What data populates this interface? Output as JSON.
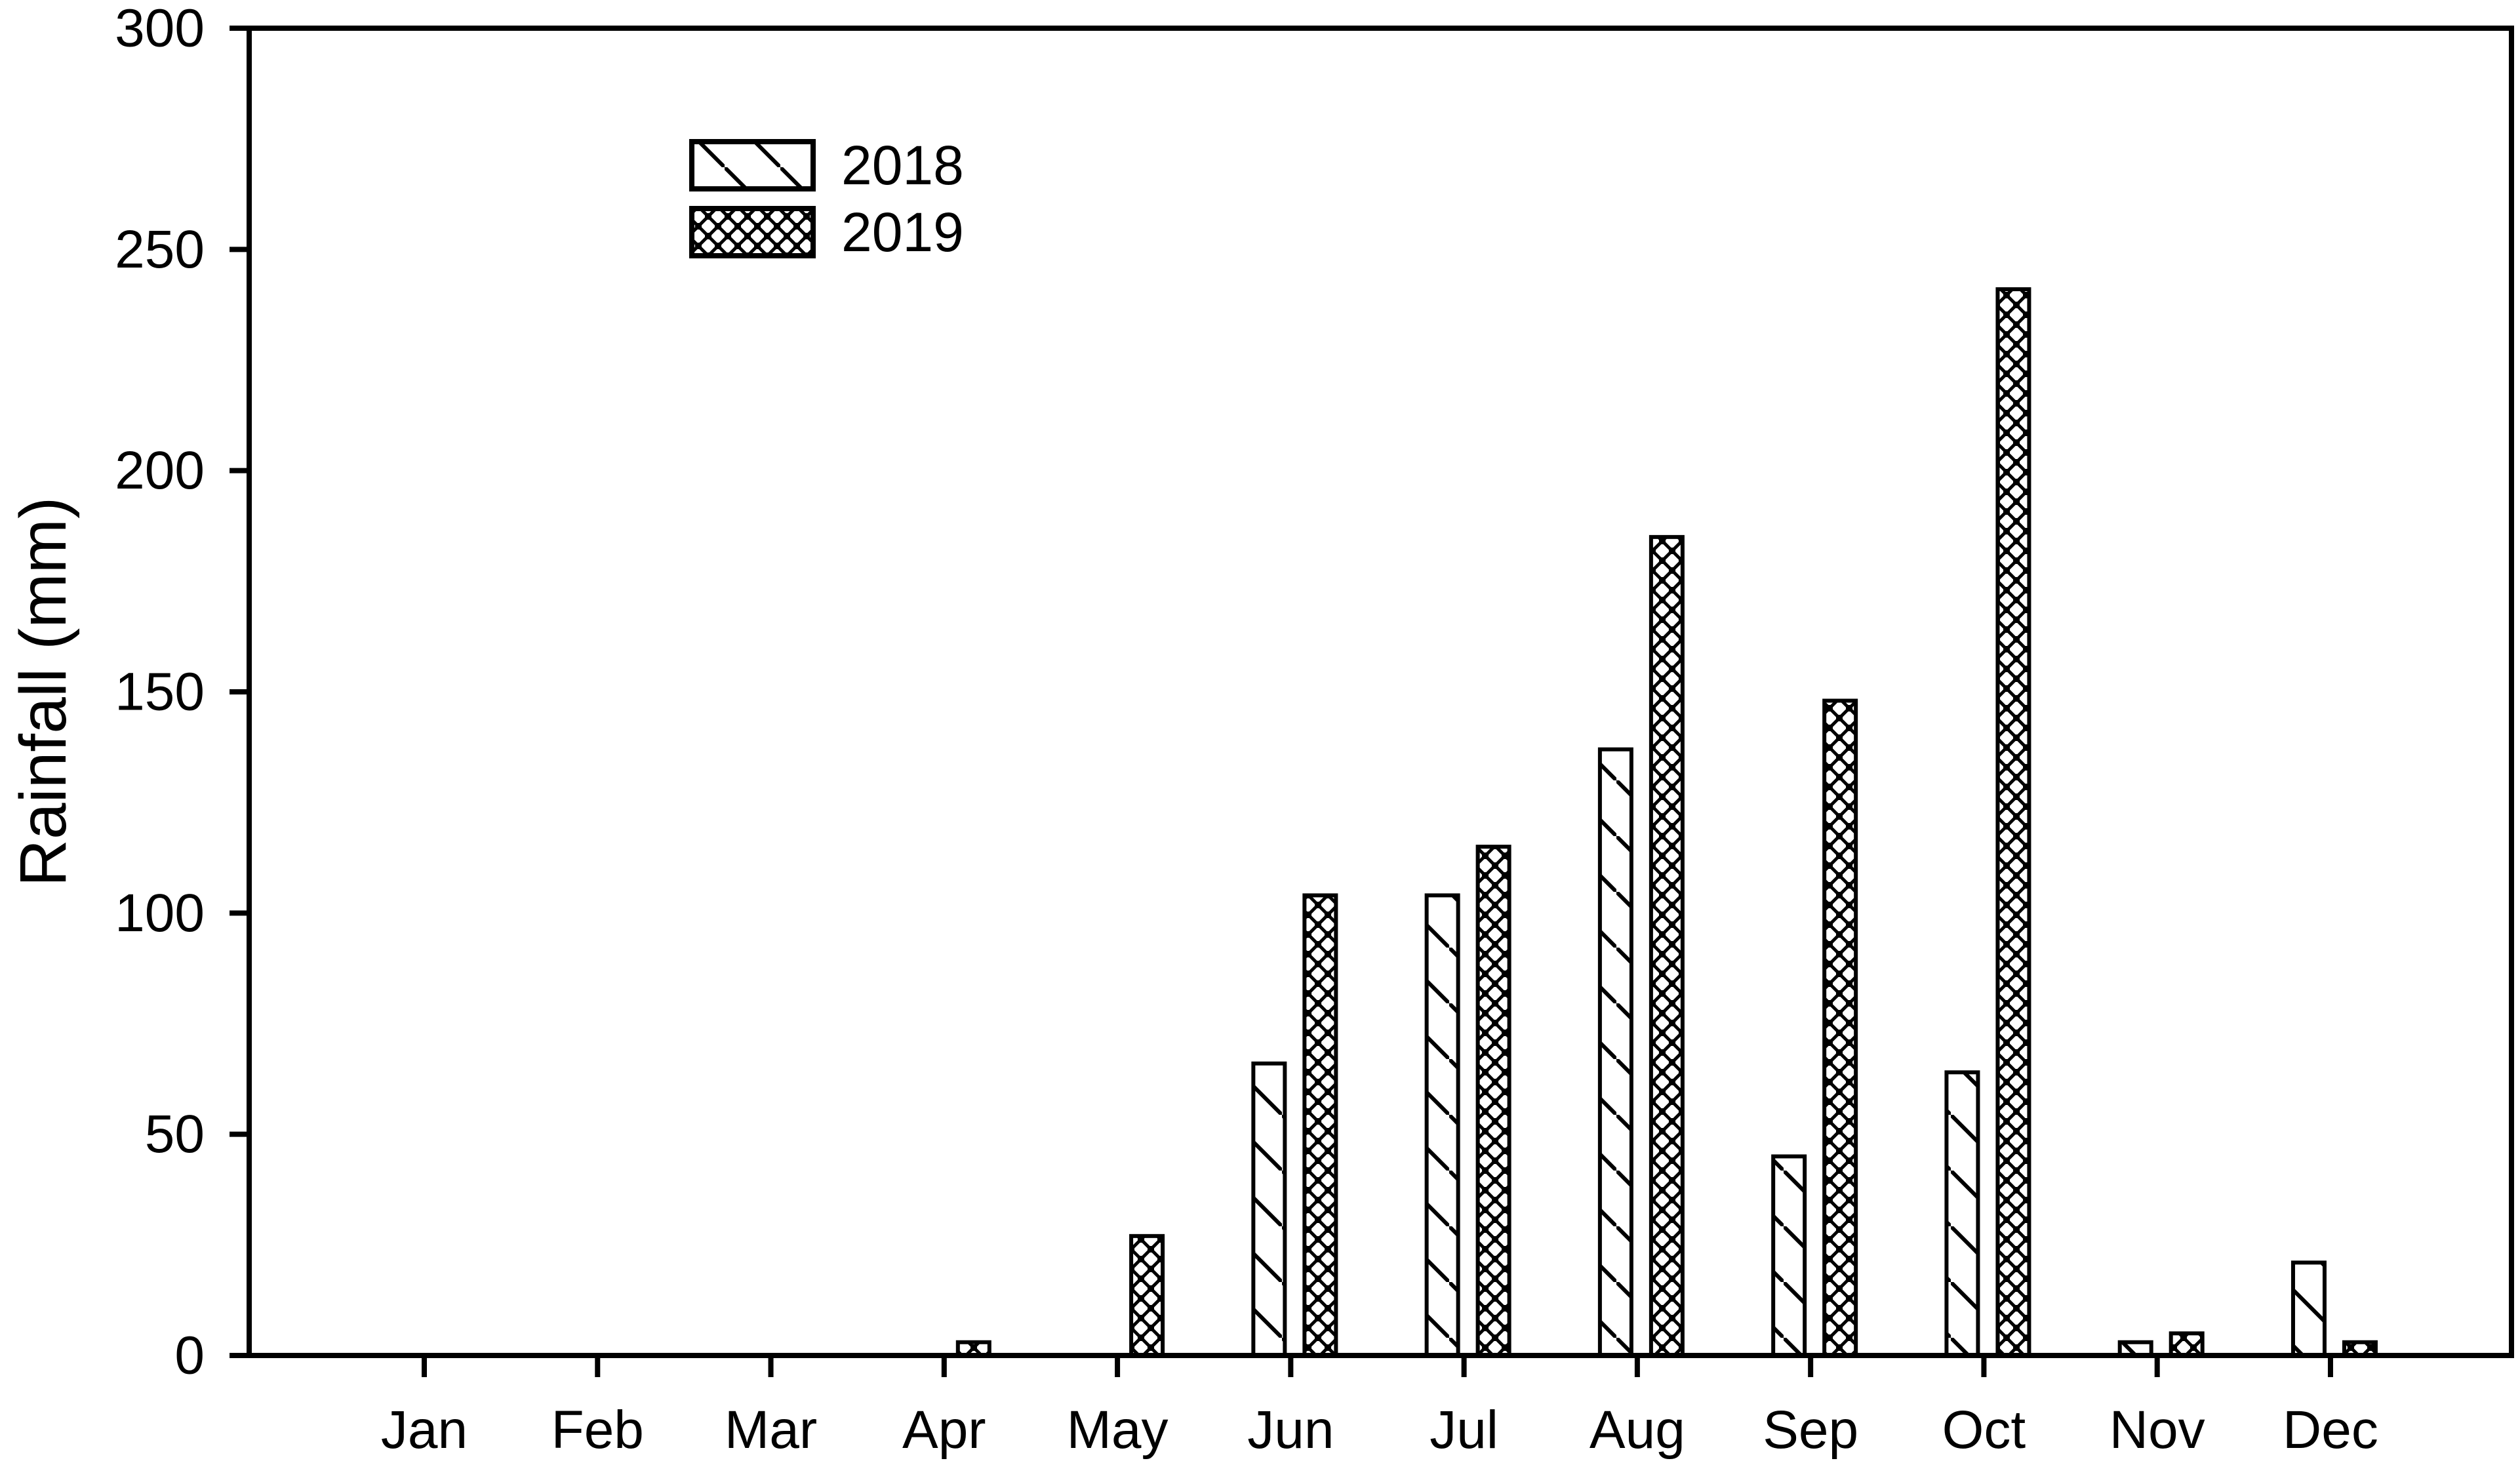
{
  "figure": {
    "background_color": "#ffffff",
    "foreground_color": "#000000"
  },
  "chart_data": {
    "type": "bar",
    "title": "",
    "xlabel": "",
    "ylabel": "Rainfall (mm)",
    "categories": [
      "Jan",
      "Feb",
      "Mar",
      "Apr",
      "May",
      "Jun",
      "Jul",
      "Aug",
      "Sep",
      "Oct",
      "Nov",
      "Dec"
    ],
    "series": [
      {
        "name": "2018",
        "hatch": "diagonal",
        "values": [
          0,
          0,
          0,
          0,
          0,
          66,
          104,
          137,
          45,
          64,
          3,
          21
        ]
      },
      {
        "name": "2019",
        "hatch": "crosshatch-dots",
        "values": [
          0,
          0,
          0,
          3,
          27,
          104,
          115,
          185,
          148,
          241,
          5,
          3
        ]
      }
    ],
    "ylim": [
      0,
      300
    ],
    "yticks": [
      0,
      50,
      100,
      150,
      200,
      250,
      300
    ],
    "grid": false,
    "legend_position": "upper-left-inside",
    "bar_color": "#ffffff",
    "outline_color": "#000000"
  }
}
